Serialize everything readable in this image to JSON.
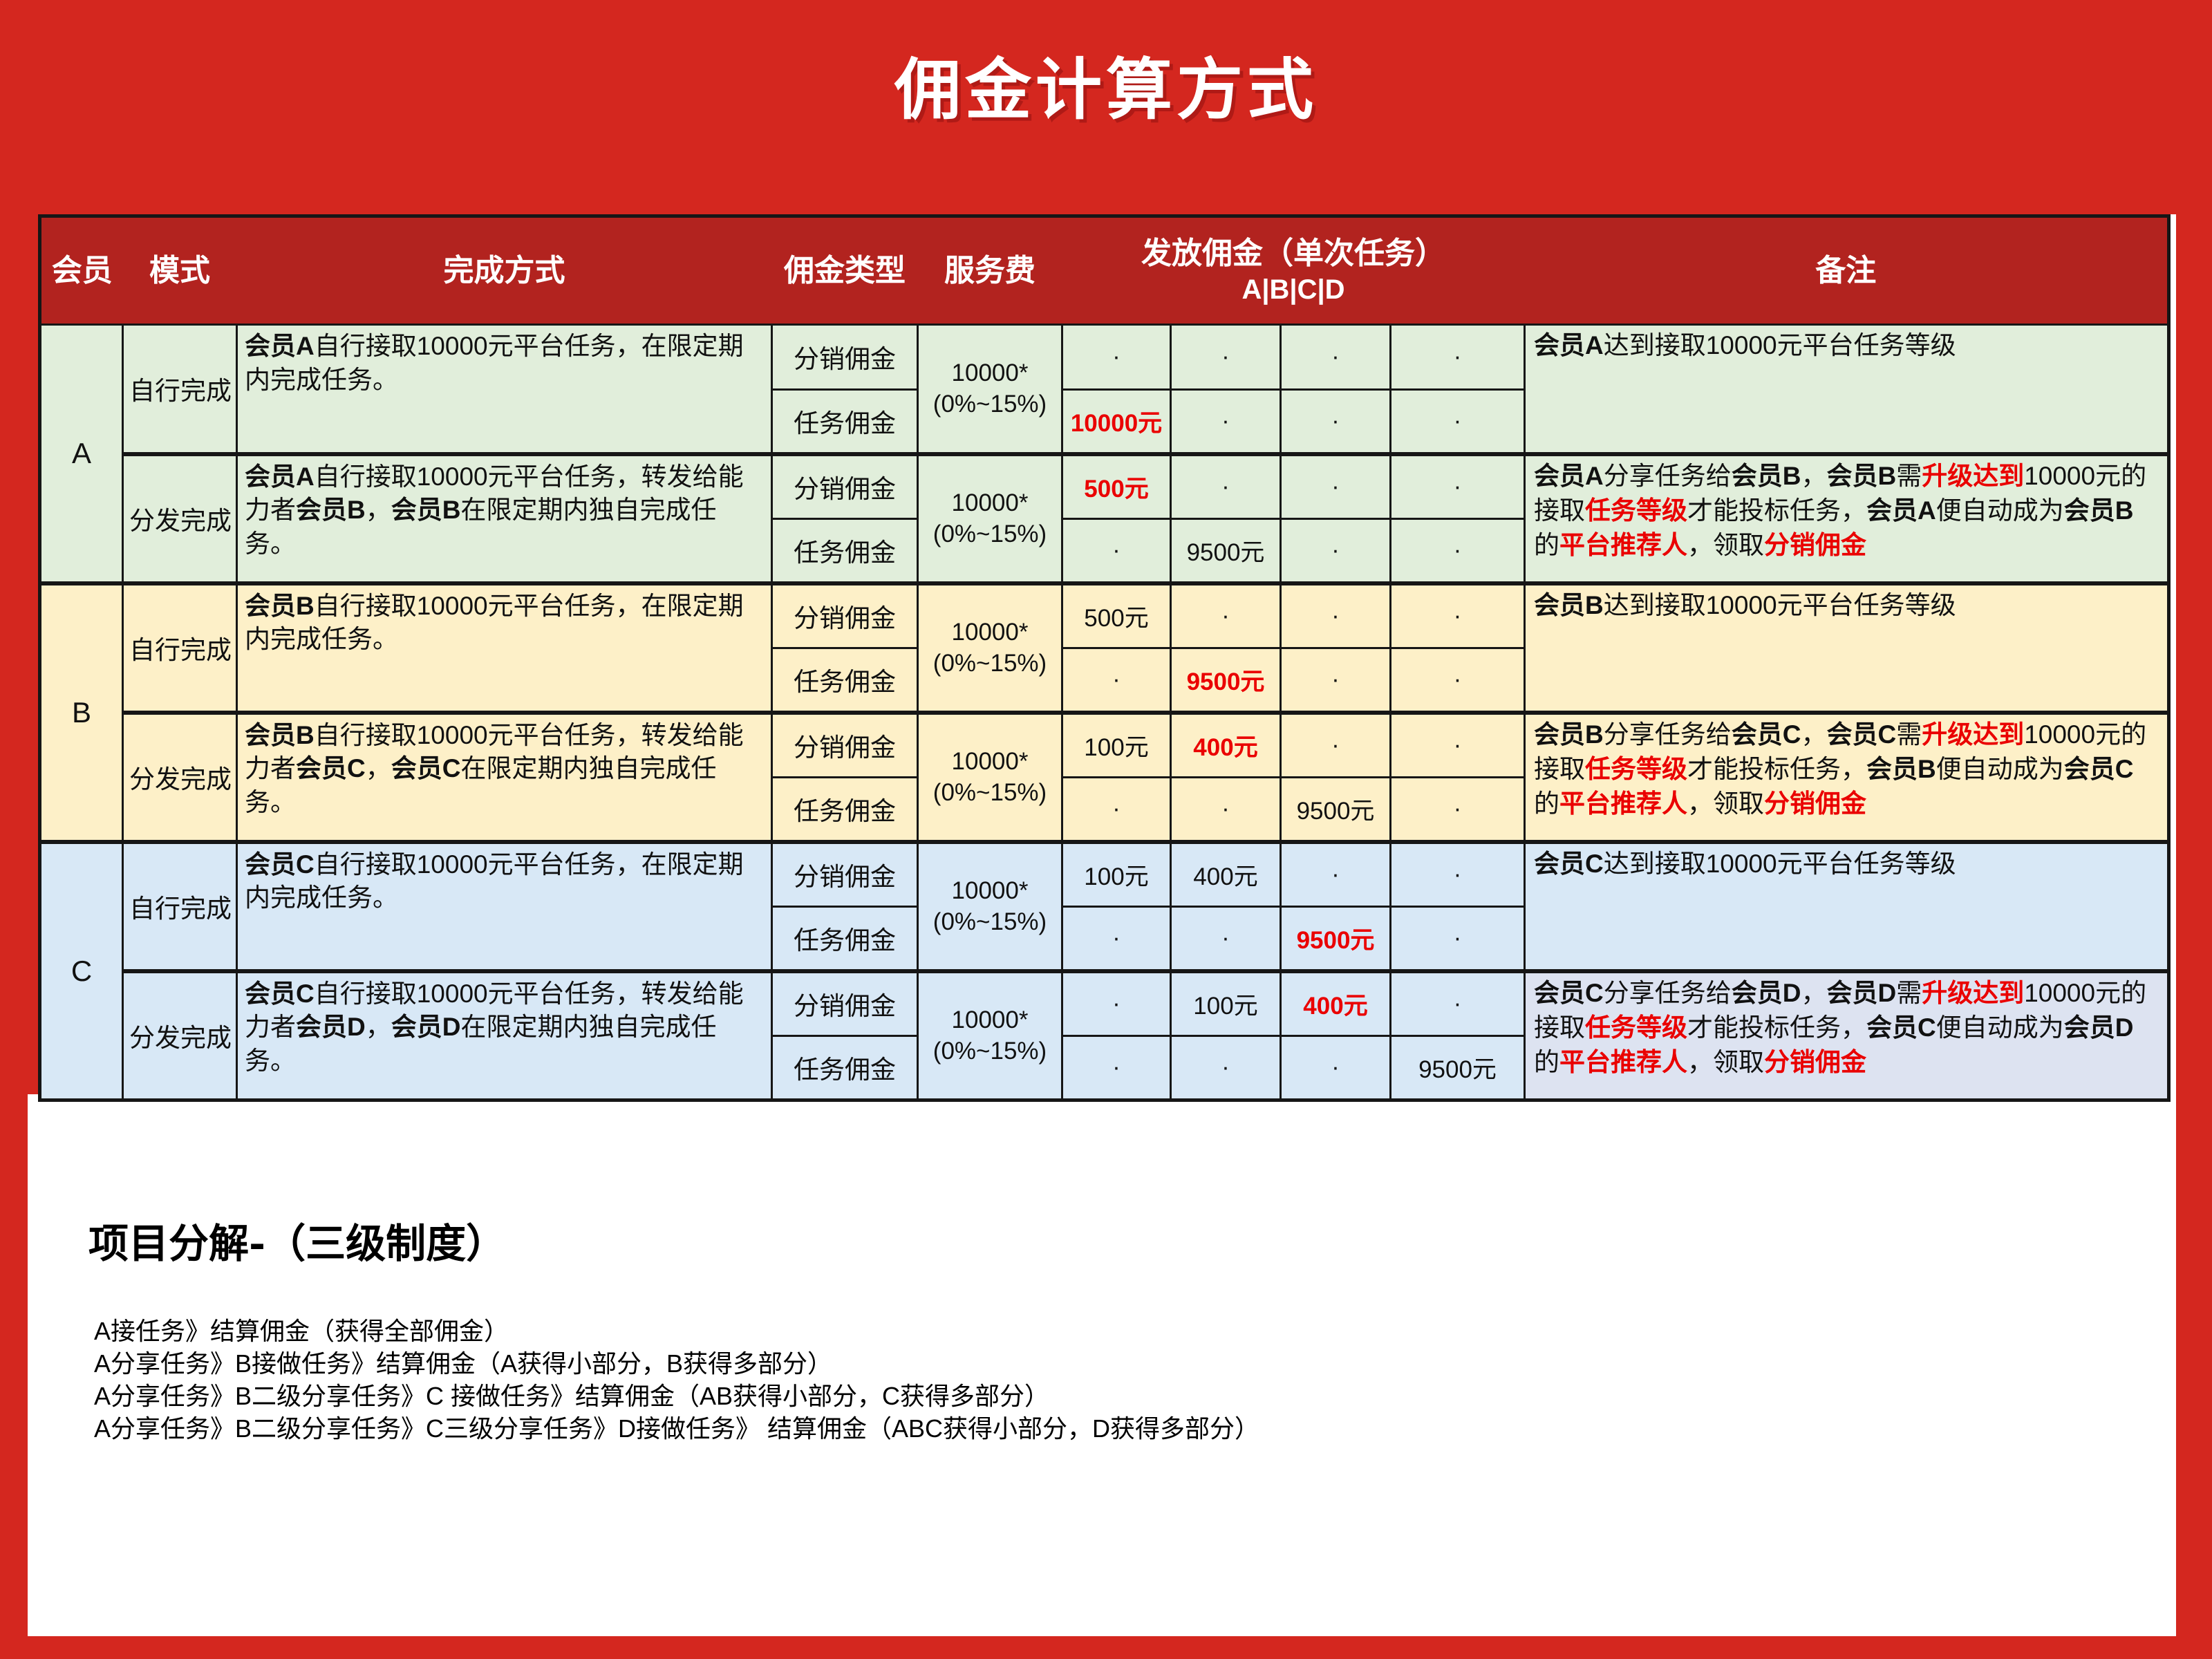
{
  "title": "佣金计算方式",
  "colors": {
    "background_red": "#d4271f",
    "header_red": "#b2231f",
    "accent_red_text": "#ea0000",
    "section_a_green": "#e1eedb",
    "section_b_yellow": "#fdf0c8",
    "section_c_blue": "#d8e8f6",
    "section_c_alt_blue": "#dde3f1"
  },
  "header": {
    "member": "会员",
    "mode": "模式",
    "method": "完成方式",
    "ctype": "佣金类型",
    "fee": "服务费",
    "payout": "发放佣金（单次任务）",
    "payout2": "A|B|C|D",
    "remark": "备注"
  },
  "fee": {
    "l1": "10000*",
    "l2": "(0%~15%)"
  },
  "sections": [
    {
      "member": "A",
      "halves": [
        {
          "mode": "自行完成",
          "method": [
            {
              "t": "会员A",
              "b": 1
            },
            {
              "t": "自行接取10000元平台任务，在限定期内完成任务。"
            }
          ],
          "r1": {
            "ctype": "分销佣金",
            "v": [
              [
                {
                  "t": "·"
                }
              ],
              [
                {
                  "t": "·"
                }
              ],
              [
                {
                  "t": "·"
                }
              ],
              [
                {
                  "t": "·"
                }
              ]
            ]
          },
          "r2": {
            "ctype": "任务佣金",
            "v": [
              [
                {
                  "t": "10000元",
                  "red": 1
                }
              ],
              [
                {
                  "t": "·"
                }
              ],
              [
                {
                  "t": "·"
                }
              ],
              [
                {
                  "t": "·"
                }
              ]
            ]
          },
          "remark": [
            {
              "t": "会员A",
              "b": 1
            },
            {
              "t": "达到接取10000元平台任务等级"
            }
          ]
        },
        {
          "mode": "分发完成",
          "method": [
            {
              "t": "会员A",
              "b": 1
            },
            {
              "t": "自行接取10000元平台任务，转发给能力者"
            },
            {
              "t": "会员B",
              "b": 1
            },
            {
              "t": "，"
            },
            {
              "t": "会员B",
              "b": 1
            },
            {
              "t": "在限定期内独自完成任务。"
            }
          ],
          "r1": {
            "ctype": "分销佣金",
            "v": [
              [
                {
                  "t": "500元",
                  "red": 1
                }
              ],
              [
                {
                  "t": "·"
                }
              ],
              [
                {
                  "t": "·"
                }
              ],
              [
                {
                  "t": "·"
                }
              ]
            ]
          },
          "r2": {
            "ctype": "任务佣金",
            "v": [
              [
                {
                  "t": "·"
                }
              ],
              [
                {
                  "t": "9500元"
                }
              ],
              [
                {
                  "t": "·"
                }
              ],
              [
                {
                  "t": "·"
                }
              ]
            ]
          },
          "remark": [
            {
              "t": "会员A",
              "b": 1
            },
            {
              "t": "分享任务给"
            },
            {
              "t": "会员B",
              "b": 1
            },
            {
              "t": "，"
            },
            {
              "t": "会员B",
              "b": 1
            },
            {
              "t": "需"
            },
            {
              "t": "升级达到",
              "red": 1
            },
            {
              "t": "10000元的接取"
            },
            {
              "t": "任务等级",
              "red": 1
            },
            {
              "t": "才能投标任务，"
            },
            {
              "t": "会员A",
              "b": 1
            },
            {
              "t": "便自动成为"
            },
            {
              "t": "会员B",
              "b": 1
            },
            {
              "t": "的"
            },
            {
              "t": "平台推荐人",
              "red": 1
            },
            {
              "t": "，领取"
            },
            {
              "t": "分销佣金",
              "red": 1
            }
          ]
        }
      ]
    },
    {
      "member": "B",
      "halves": [
        {
          "mode": "自行完成",
          "method": [
            {
              "t": "会员B",
              "b": 1
            },
            {
              "t": "自行接取10000元平台任务，在限定期内完成任务。"
            }
          ],
          "r1": {
            "ctype": "分销佣金",
            "v": [
              [
                {
                  "t": "500元"
                }
              ],
              [
                {
                  "t": "·"
                }
              ],
              [
                {
                  "t": "·"
                }
              ],
              [
                {
                  "t": "·"
                }
              ]
            ]
          },
          "r2": {
            "ctype": "任务佣金",
            "v": [
              [
                {
                  "t": "·"
                }
              ],
              [
                {
                  "t": "9500元",
                  "red": 1
                }
              ],
              [
                {
                  "t": "·"
                }
              ],
              [
                {
                  "t": "·"
                }
              ]
            ]
          },
          "remark": [
            {
              "t": "会员B",
              "b": 1
            },
            {
              "t": "达到接取10000元平台任务等级"
            }
          ]
        },
        {
          "mode": "分发完成",
          "method": [
            {
              "t": "会员B",
              "b": 1
            },
            {
              "t": "自行接取10000元平台任务，转发给能力者"
            },
            {
              "t": "会员C",
              "b": 1
            },
            {
              "t": "，"
            },
            {
              "t": "会员C",
              "b": 1
            },
            {
              "t": "在限定期内独自完成任务。"
            }
          ],
          "r1": {
            "ctype": "分销佣金",
            "v": [
              [
                {
                  "t": "100元"
                }
              ],
              [
                {
                  "t": "400元",
                  "red": 1
                }
              ],
              [
                {
                  "t": "·"
                }
              ],
              [
                {
                  "t": "·"
                }
              ]
            ]
          },
          "r2": {
            "ctype": "任务佣金",
            "v": [
              [
                {
                  "t": "·"
                }
              ],
              [
                {
                  "t": "·"
                }
              ],
              [
                {
                  "t": "9500元"
                }
              ],
              [
                {
                  "t": "·"
                }
              ]
            ]
          },
          "remark": [
            {
              "t": "会员B",
              "b": 1
            },
            {
              "t": "分享任务给"
            },
            {
              "t": "会员C",
              "b": 1
            },
            {
              "t": "，"
            },
            {
              "t": "会员C",
              "b": 1
            },
            {
              "t": "需"
            },
            {
              "t": "升级达到",
              "red": 1
            },
            {
              "t": "10000元的接取"
            },
            {
              "t": "任务等级",
              "red": 1
            },
            {
              "t": "才能投标任务，"
            },
            {
              "t": "会员B",
              "b": 1
            },
            {
              "t": "便自动成为"
            },
            {
              "t": "会员C",
              "b": 1
            },
            {
              "t": "的"
            },
            {
              "t": "平台推荐人",
              "red": 1
            },
            {
              "t": "，领取"
            },
            {
              "t": "分销佣金",
              "red": 1
            }
          ]
        }
      ]
    },
    {
      "member": "C",
      "halves": [
        {
          "mode": "自行完成",
          "method": [
            {
              "t": "会员C",
              "b": 1
            },
            {
              "t": "自行接取10000元平台任务，在限定期内完成任务。"
            }
          ],
          "r1": {
            "ctype": "分销佣金",
            "v": [
              [
                {
                  "t": "100元"
                }
              ],
              [
                {
                  "t": "400元"
                }
              ],
              [
                {
                  "t": "·"
                }
              ],
              [
                {
                  "t": "·"
                }
              ]
            ]
          },
          "r2": {
            "ctype": "任务佣金",
            "v": [
              [
                {
                  "t": "·"
                }
              ],
              [
                {
                  "t": "·"
                }
              ],
              [
                {
                  "t": "9500元",
                  "red": 1
                }
              ],
              [
                {
                  "t": "·"
                }
              ]
            ]
          },
          "remark": [
            {
              "t": "会员C",
              "b": 1
            },
            {
              "t": "达到接取10000元平台任务等级"
            }
          ]
        },
        {
          "mode": "分发完成",
          "method": [
            {
              "t": "会员C",
              "b": 1
            },
            {
              "t": "自行接取10000元平台任务，转发给能力者"
            },
            {
              "t": "会员D",
              "b": 1
            },
            {
              "t": "，"
            },
            {
              "t": "会员D",
              "b": 1
            },
            {
              "t": "在限定期内独自完成任务。"
            }
          ],
          "r1": {
            "ctype": "分销佣金",
            "v": [
              [
                {
                  "t": "·"
                }
              ],
              [
                {
                  "t": "100元"
                }
              ],
              [
                {
                  "t": "400元",
                  "red": 1
                }
              ],
              [
                {
                  "t": "·"
                }
              ]
            ]
          },
          "r2": {
            "ctype": "任务佣金",
            "v": [
              [
                {
                  "t": "·"
                }
              ],
              [
                {
                  "t": "·"
                }
              ],
              [
                {
                  "t": "·"
                }
              ],
              [
                {
                  "t": "9500元"
                }
              ]
            ]
          },
          "remark": [
            {
              "t": "会员C",
              "b": 1
            },
            {
              "t": "分享任务给"
            },
            {
              "t": "会员D",
              "b": 1
            },
            {
              "t": "，"
            },
            {
              "t": "会员D",
              "b": 1
            },
            {
              "t": "需"
            },
            {
              "t": "升级达到",
              "red": 1
            },
            {
              "t": "10000元的接取"
            },
            {
              "t": "任务等级",
              "red": 1
            },
            {
              "t": "才能投标任务，"
            },
            {
              "t": "会员C",
              "b": 1
            },
            {
              "t": "便自动成为"
            },
            {
              "t": "会员D",
              "b": 1
            },
            {
              "t": "的"
            },
            {
              "t": "平台推荐人",
              "red": 1
            },
            {
              "t": "，领取"
            },
            {
              "t": "分销佣金",
              "red": 1
            }
          ]
        }
      ]
    }
  ],
  "breakdown": {
    "heading": "项目分解-（三级制度）",
    "lines": [
      "A接任务》结算佣金（获得全部佣金）",
      "A分享任务》B接做任务》结算佣金（A获得小部分，B获得多部分）",
      "A分享任务》B二级分享任务》C 接做任务》结算佣金（AB获得小部分，C获得多部分）",
      "A分享任务》B二级分享任务》C三级分享任务》D接做任务》 结算佣金（ABC获得小部分，D获得多部分）"
    ]
  }
}
